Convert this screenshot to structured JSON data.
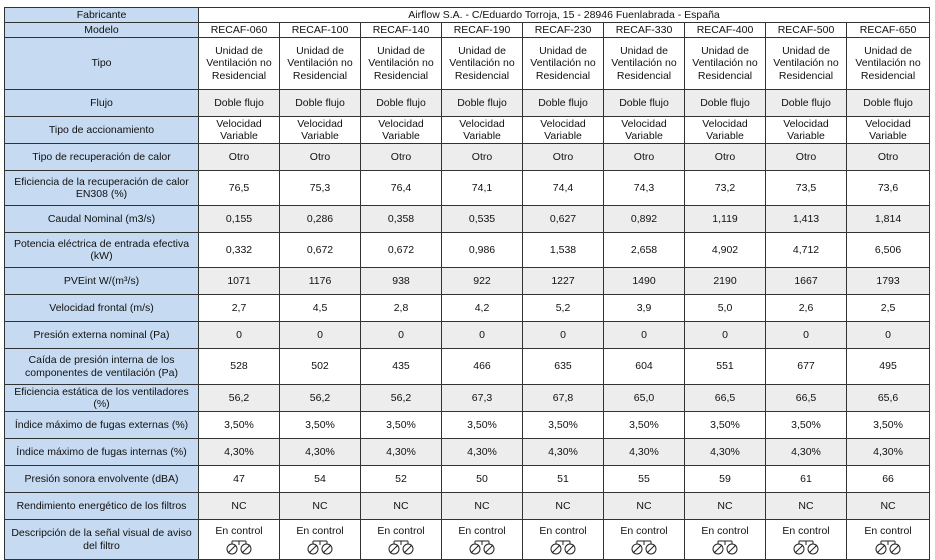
{
  "header": {
    "fabricante_label": "Fabricante",
    "fabricante_value": "Airflow S.A. - C/Eduardo Torroja, 15 - 28946 Fuenlabrada - España",
    "modelo_label": "Modelo",
    "models": [
      "RECAF-060",
      "RECAF-100",
      "RECAF-140",
      "RECAF-190",
      "RECAF-230",
      "RECAF-330",
      "RECAF-400",
      "RECAF-500",
      "RECAF-650"
    ]
  },
  "rows": [
    {
      "label": "Tipo",
      "values": [
        "Unidad de Ventilación no Residencial",
        "Unidad de Ventilación no Residencial",
        "Unidad de Ventilación no Residencial",
        "Unidad de Ventilación no Residencial",
        "Unidad de Ventilación no Residencial",
        "Unidad de Ventilación no Residencial",
        "Unidad de Ventilación no Residencial",
        "Unidad de Ventilación no Residencial",
        "Unidad de Ventilación no Residencial"
      ]
    },
    {
      "label": "Flujo",
      "values": [
        "Doble flujo",
        "Doble flujo",
        "Doble flujo",
        "Doble flujo",
        "Doble flujo",
        "Doble flujo",
        "Doble flujo",
        "Doble flujo",
        "Doble flujo"
      ]
    },
    {
      "label": "Tipo de accionamiento",
      "values": [
        "Velocidad Variable",
        "Velocidad Variable",
        "Velocidad Variable",
        "Velocidad Variable",
        "Velocidad Variable",
        "Velocidad Variable",
        "Velocidad Variable",
        "Velocidad Variable",
        "Velocidad Variable"
      ]
    },
    {
      "label": "Tipo de recuperación de calor",
      "values": [
        "Otro",
        "Otro",
        "Otro",
        "Otro",
        "Otro",
        "Otro",
        "Otro",
        "Otro",
        "Otro"
      ]
    },
    {
      "label": "Eficiencia de la recuperación de calor EN308 (%)",
      "values": [
        "76,5",
        "75,3",
        "76,4",
        "74,1",
        "74,4",
        "74,3",
        "73,2",
        "73,5",
        "73,6"
      ]
    },
    {
      "label": "Caudal Nominal (m3/s)",
      "values": [
        "0,155",
        "0,286",
        "0,358",
        "0,535",
        "0,627",
        "0,892",
        "1,119",
        "1,413",
        "1,814"
      ]
    },
    {
      "label": "Potencia eléctrica de entrada efectiva (kW)",
      "values": [
        "0,332",
        "0,672",
        "0,672",
        "0,986",
        "1,538",
        "2,658",
        "4,902",
        "4,712",
        "6,506"
      ]
    },
    {
      "label": "PVEint W/(m³/s)",
      "values": [
        "1071",
        "1176",
        "938",
        "922",
        "1227",
        "1490",
        "2190",
        "1667",
        "1793"
      ]
    },
    {
      "label": "Velocidad frontal (m/s)",
      "values": [
        "2,7",
        "4,5",
        "2,8",
        "4,2",
        "5,2",
        "3,9",
        "5,0",
        "2,6",
        "2,5"
      ]
    },
    {
      "label": "Presión externa nominal (Pa)",
      "values": [
        "0",
        "0",
        "0",
        "0",
        "0",
        "0",
        "0",
        "0",
        "0"
      ]
    },
    {
      "label": "Caída de presión interna de los componentes de ventilación (Pa)",
      "values": [
        "528",
        "502",
        "435",
        "466",
        "635",
        "604",
        "551",
        "677",
        "495"
      ]
    },
    {
      "label": "Eficiencia estática de los ventiladores (%)",
      "values": [
        "56,2",
        "56,2",
        "56,2",
        "67,3",
        "67,8",
        "65,0",
        "66,5",
        "66,5",
        "65,6"
      ]
    },
    {
      "label": "Índice máximo de fugas externas (%)",
      "values": [
        "3,50%",
        "3,50%",
        "3,50%",
        "3,50%",
        "3,50%",
        "3,50%",
        "3,50%",
        "3,50%",
        "3,50%"
      ]
    },
    {
      "label": "Índice máximo de fugas internas (%)",
      "values": [
        "4,30%",
        "4,30%",
        "4,30%",
        "4,30%",
        "4,30%",
        "4,30%",
        "4,30%",
        "4,30%",
        "4,30%"
      ]
    },
    {
      "label": "Presión sonora envolvente (dBA)",
      "values": [
        "47",
        "54",
        "52",
        "50",
        "51",
        "55",
        "59",
        "61",
        "66"
      ]
    },
    {
      "label": "Rendimiento energético de los filtros",
      "values": [
        "NC",
        "NC",
        "NC",
        "NC",
        "NC",
        "NC",
        "NC",
        "NC",
        "NC"
      ]
    }
  ],
  "filter_row": {
    "label": "Descripción de la señal visual de aviso del filtro",
    "values": [
      "En control",
      "En control",
      "En control",
      "En control",
      "En control",
      "En control",
      "En control",
      "En control",
      "En control"
    ],
    "icon": "pressure-switch-icon"
  }
}
